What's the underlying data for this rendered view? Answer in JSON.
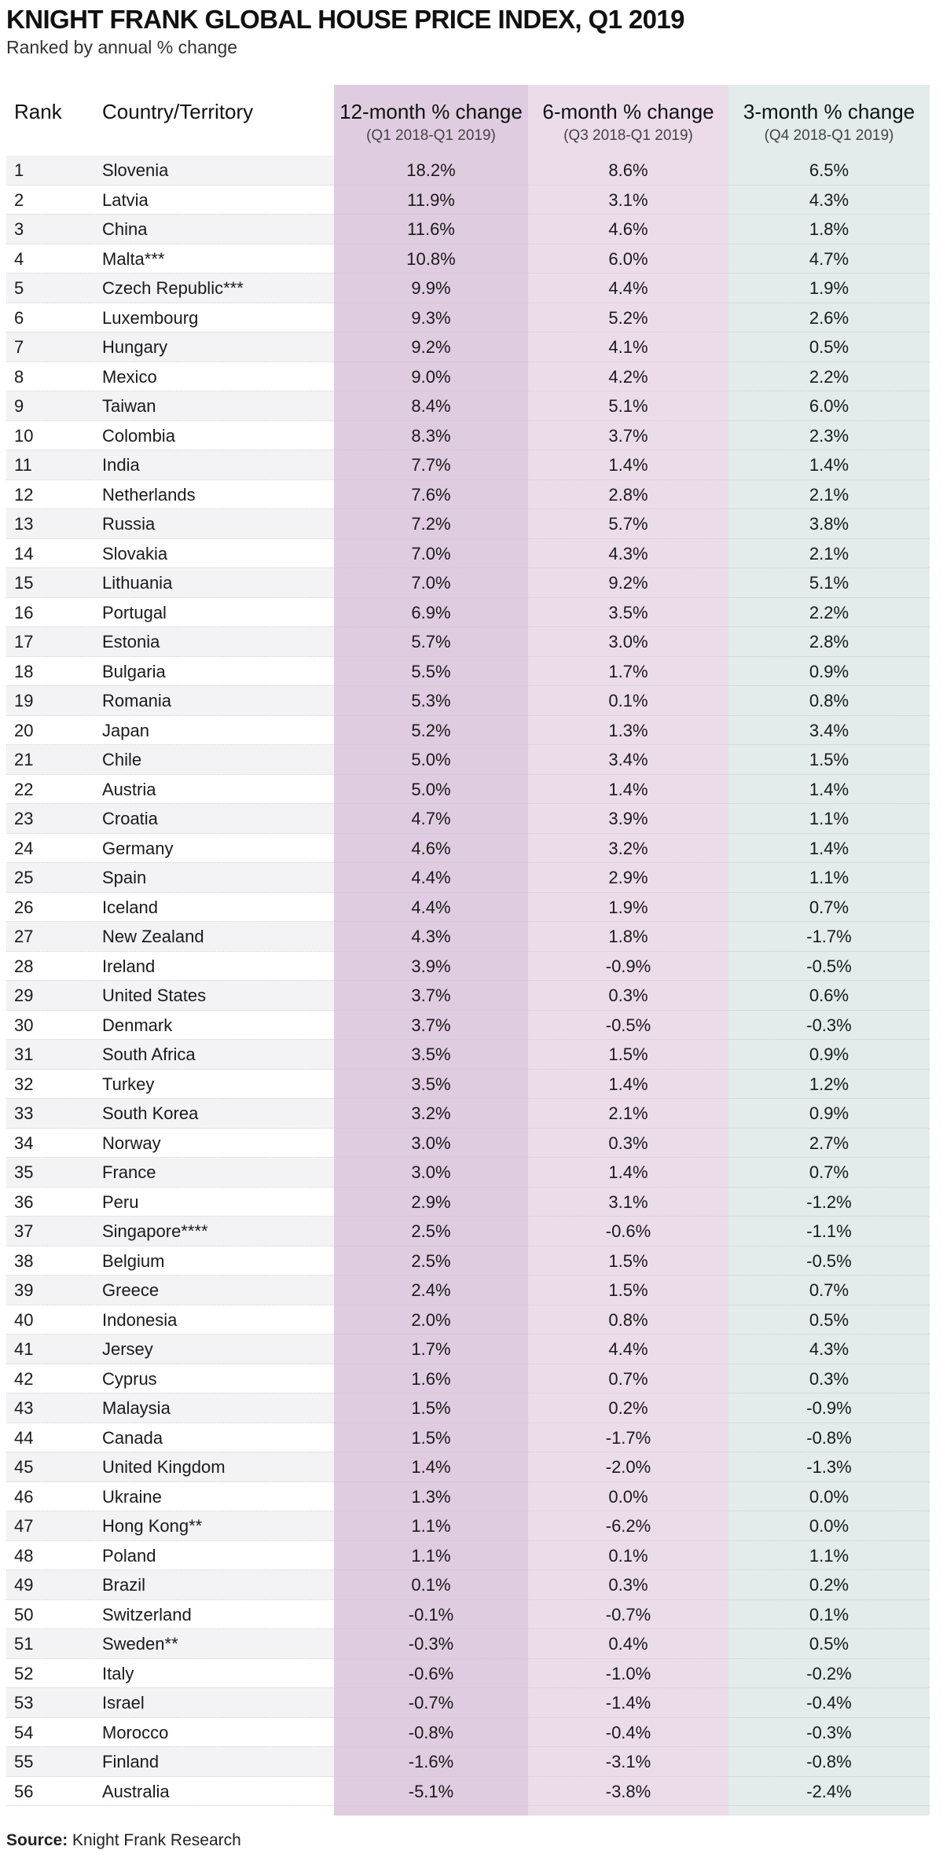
{
  "title": "KNIGHT FRANK GLOBAL HOUSE PRICE INDEX, Q1 2019",
  "subtitle": "Ranked by annual % change",
  "source_label": "Source:",
  "source_text": "Knight Frank Research",
  "colors": {
    "col_12": "#e0cce0",
    "col_6": "#ecdcea",
    "col_3": "#e3ebeb",
    "row_alt": "#f3f3f5"
  },
  "chart_data": {
    "type": "table",
    "title": "KNIGHT FRANK GLOBAL HOUSE PRICE INDEX, Q1 2019",
    "subtitle": "Ranked by annual % change",
    "columns": [
      {
        "label": "Rank",
        "sub": ""
      },
      {
        "label": "Country/Territory",
        "sub": ""
      },
      {
        "label": "12-month % change",
        "sub": "(Q1 2018-Q1 2019)"
      },
      {
        "label": "6-month % change",
        "sub": "(Q3 2018-Q1 2019)"
      },
      {
        "label": "3-month % change",
        "sub": "(Q4 2018-Q1 2019)"
      }
    ],
    "rows": [
      [
        "1",
        "Slovenia",
        "18.2%",
        "8.6%",
        "6.5%"
      ],
      [
        "2",
        "Latvia",
        "11.9%",
        "3.1%",
        "4.3%"
      ],
      [
        "3",
        "China",
        "11.6%",
        "4.6%",
        "1.8%"
      ],
      [
        "4",
        "Malta***",
        "10.8%",
        "6.0%",
        "4.7%"
      ],
      [
        "5",
        "Czech Republic***",
        "9.9%",
        "4.4%",
        "1.9%"
      ],
      [
        "6",
        "Luxembourg",
        "9.3%",
        "5.2%",
        "2.6%"
      ],
      [
        "7",
        "Hungary",
        "9.2%",
        "4.1%",
        "0.5%"
      ],
      [
        "8",
        "Mexico",
        "9.0%",
        "4.2%",
        "2.2%"
      ],
      [
        "9",
        "Taiwan",
        "8.4%",
        "5.1%",
        "6.0%"
      ],
      [
        "10",
        "Colombia",
        "8.3%",
        "3.7%",
        "2.3%"
      ],
      [
        "11",
        "India",
        "7.7%",
        "1.4%",
        "1.4%"
      ],
      [
        "12",
        "Netherlands",
        "7.6%",
        "2.8%",
        "2.1%"
      ],
      [
        "13",
        "Russia",
        "7.2%",
        "5.7%",
        "3.8%"
      ],
      [
        "14",
        "Slovakia",
        "7.0%",
        "4.3%",
        "2.1%"
      ],
      [
        "15",
        "Lithuania",
        "7.0%",
        "9.2%",
        "5.1%"
      ],
      [
        "16",
        "Portugal",
        "6.9%",
        "3.5%",
        "2.2%"
      ],
      [
        "17",
        "Estonia",
        "5.7%",
        "3.0%",
        "2.8%"
      ],
      [
        "18",
        "Bulgaria",
        "5.5%",
        "1.7%",
        "0.9%"
      ],
      [
        "19",
        "Romania",
        "5.3%",
        "0.1%",
        "0.8%"
      ],
      [
        "20",
        "Japan",
        "5.2%",
        "1.3%",
        "3.4%"
      ],
      [
        "21",
        "Chile",
        "5.0%",
        "3.4%",
        "1.5%"
      ],
      [
        "22",
        "Austria",
        "5.0%",
        "1.4%",
        "1.4%"
      ],
      [
        "23",
        "Croatia",
        "4.7%",
        "3.9%",
        "1.1%"
      ],
      [
        "24",
        "Germany",
        "4.6%",
        "3.2%",
        "1.4%"
      ],
      [
        "25",
        "Spain",
        "4.4%",
        "2.9%",
        "1.1%"
      ],
      [
        "26",
        "Iceland",
        "4.4%",
        "1.9%",
        "0.7%"
      ],
      [
        "27",
        "New Zealand",
        "4.3%",
        "1.8%",
        "-1.7%"
      ],
      [
        "28",
        "Ireland",
        "3.9%",
        "-0.9%",
        "-0.5%"
      ],
      [
        "29",
        "United States",
        "3.7%",
        "0.3%",
        "0.6%"
      ],
      [
        "30",
        "Denmark",
        "3.7%",
        "-0.5%",
        "-0.3%"
      ],
      [
        "31",
        "South Africa",
        "3.5%",
        "1.5%",
        "0.9%"
      ],
      [
        "32",
        "Turkey",
        "3.5%",
        "1.4%",
        "1.2%"
      ],
      [
        "33",
        "South Korea",
        "3.2%",
        "2.1%",
        "0.9%"
      ],
      [
        "34",
        "Norway",
        "3.0%",
        "0.3%",
        "2.7%"
      ],
      [
        "35",
        "France",
        "3.0%",
        "1.4%",
        "0.7%"
      ],
      [
        "36",
        "Peru",
        "2.9%",
        "3.1%",
        "-1.2%"
      ],
      [
        "37",
        "Singapore****",
        "2.5%",
        "-0.6%",
        "-1.1%"
      ],
      [
        "38",
        "Belgium",
        "2.5%",
        "1.5%",
        "-0.5%"
      ],
      [
        "39",
        "Greece",
        "2.4%",
        "1.5%",
        "0.7%"
      ],
      [
        "40",
        "Indonesia",
        "2.0%",
        "0.8%",
        "0.5%"
      ],
      [
        "41",
        "Jersey",
        "1.7%",
        "4.4%",
        "4.3%"
      ],
      [
        "42",
        "Cyprus",
        "1.6%",
        "0.7%",
        "0.3%"
      ],
      [
        "43",
        "Malaysia",
        "1.5%",
        "0.2%",
        "-0.9%"
      ],
      [
        "44",
        "Canada",
        "1.5%",
        "-1.7%",
        "-0.8%"
      ],
      [
        "45",
        "United Kingdom",
        "1.4%",
        "-2.0%",
        "-1.3%"
      ],
      [
        "46",
        "Ukraine",
        "1.3%",
        "0.0%",
        "0.0%"
      ],
      [
        "47",
        "Hong Kong**",
        "1.1%",
        "-6.2%",
        "0.0%"
      ],
      [
        "48",
        "Poland",
        "1.1%",
        "0.1%",
        "1.1%"
      ],
      [
        "49",
        "Brazil",
        "0.1%",
        "0.3%",
        "0.2%"
      ],
      [
        "50",
        "Switzerland",
        "-0.1%",
        "-0.7%",
        "0.1%"
      ],
      [
        "51",
        "Sweden**",
        "-0.3%",
        "0.4%",
        "0.5%"
      ],
      [
        "52",
        "Italy",
        "-0.6%",
        "-1.0%",
        "-0.2%"
      ],
      [
        "53",
        "Israel",
        "-0.7%",
        "-1.4%",
        "-0.4%"
      ],
      [
        "54",
        "Morocco",
        "-0.8%",
        "-0.4%",
        "-0.3%"
      ],
      [
        "55",
        "Finland",
        "-1.6%",
        "-3.1%",
        "-0.8%"
      ],
      [
        "56",
        "Australia",
        "-5.1%",
        "-3.8%",
        "-2.4%"
      ]
    ]
  }
}
